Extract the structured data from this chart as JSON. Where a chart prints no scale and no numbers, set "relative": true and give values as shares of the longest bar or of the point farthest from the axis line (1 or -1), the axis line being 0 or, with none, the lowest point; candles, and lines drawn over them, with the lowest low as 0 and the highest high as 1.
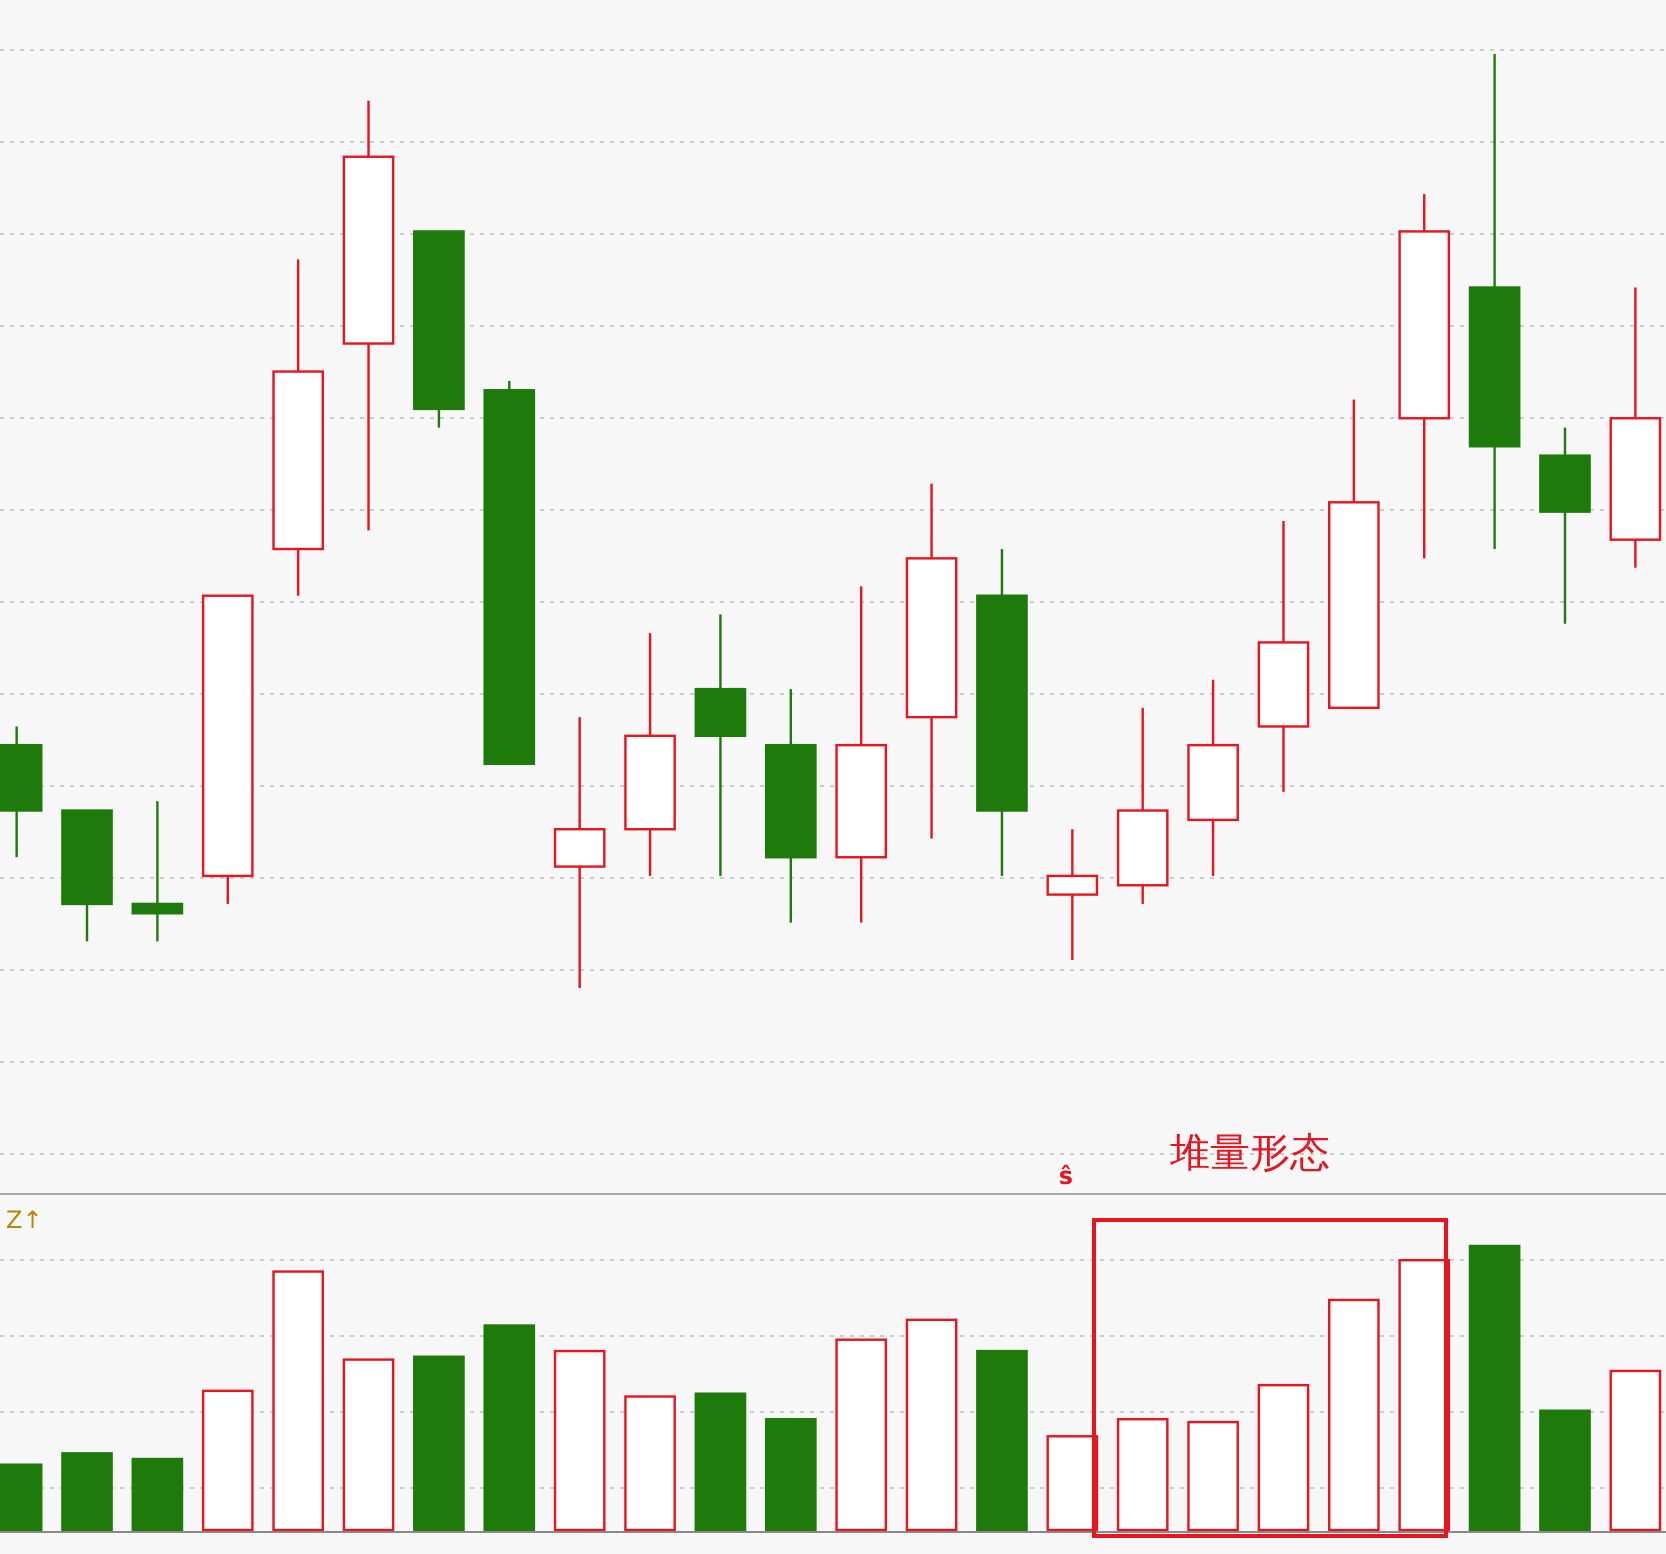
{
  "chart_data": [
    {
      "type": "candlestick",
      "relative": true,
      "grid": true,
      "categories": [
        null,
        null,
        null,
        null,
        null,
        null,
        null,
        null,
        null,
        null,
        null,
        null,
        null,
        null,
        null,
        null,
        null,
        null,
        null,
        null,
        null,
        null,
        null,
        null
      ],
      "ohlc": [
        [
          0.26,
          0.28,
          0.14,
          0.19
        ],
        [
          0.19,
          0.19,
          0.05,
          0.09
        ],
        [
          0.09,
          0.2,
          0.05,
          0.08
        ],
        [
          0.12,
          0.42,
          0.09,
          0.42
        ],
        [
          0.47,
          0.78,
          0.42,
          0.66
        ],
        [
          0.69,
          0.95,
          0.49,
          0.89
        ],
        [
          0.81,
          0.81,
          0.6,
          0.62
        ],
        [
          0.64,
          0.65,
          0.24,
          0.24
        ],
        [
          0.13,
          0.29,
          0,
          0.17
        ],
        [
          0.17,
          0.38,
          0.12,
          0.27
        ],
        [
          0.32,
          0.4,
          0.12,
          0.27
        ],
        [
          0.26,
          0.32,
          0.07,
          0.14
        ],
        [
          0.14,
          0.43,
          0.07,
          0.26
        ],
        [
          0.29,
          0.54,
          0.16,
          0.46
        ],
        [
          0.42,
          0.47,
          0.12,
          0.19
        ],
        [
          0.1,
          0.17,
          0.03,
          0.12
        ],
        [
          0.11,
          0.3,
          0.09,
          0.19
        ],
        [
          0.18,
          0.33,
          0.12,
          0.26
        ],
        [
          0.28,
          0.5,
          0.21,
          0.37
        ],
        [
          0.3,
          0.63,
          0.3,
          0.52
        ],
        [
          0.61,
          0.85,
          0.46,
          0.81
        ],
        [
          0.75,
          1,
          0.47,
          0.58
        ],
        [
          0.57,
          0.6,
          0.39,
          0.51
        ],
        [
          0.48,
          0.75,
          0.45,
          0.61
        ]
      ],
      "colors": [
        "#1e7b0b",
        "#1e7b0b",
        "#1e7b0b",
        "#e8141e",
        "#e8141e",
        "#e8141e",
        "#1e7b0b",
        "#1e7b0b",
        "#e8141e",
        "#e8141e",
        "#1e7b0b",
        "#1e7b0b",
        "#e8141e",
        "#e8141e",
        "#1e7b0b",
        "#e8141e",
        "#e8141e",
        "#e8141e",
        "#e8141e",
        "#e8141e",
        "#e8141e",
        "#1e7b0b",
        "#1e7b0b",
        "#e8141e"
      ]
    },
    {
      "type": "bar",
      "relative": true,
      "grid": true,
      "categories": [
        null,
        null,
        null,
        null,
        null,
        null,
        null,
        null,
        null,
        null,
        null,
        null,
        null,
        null,
        null,
        null,
        null,
        null,
        null,
        null,
        null,
        null,
        null,
        null
      ],
      "values": [
        0.23,
        0.27,
        0.25,
        0.49,
        0.91,
        0.6,
        0.61,
        0.72,
        0.63,
        0.47,
        0.48,
        0.39,
        0.67,
        0.74,
        0.63,
        0.33,
        0.39,
        0.38,
        0.51,
        0.81,
        0.95,
        1,
        0.42,
        0.56
      ],
      "colors": [
        "#1e7b0b",
        "#1e7b0b",
        "#1e7b0b",
        "#e8141e",
        "#e8141e",
        "#e8141e",
        "#1e7b0b",
        "#1e7b0b",
        "#e8141e",
        "#e8141e",
        "#1e7b0b",
        "#1e7b0b",
        "#e8141e",
        "#e8141e",
        "#1e7b0b",
        "#e8141e",
        "#e8141e",
        "#e8141e",
        "#e8141e",
        "#e8141e",
        "#e8141e",
        "#1e7b0b",
        "#1e7b0b",
        "#e8141e"
      ],
      "annotations": [
        "堆量形态",
        "Z↑",
        "ŝ"
      ]
    }
  ]
}
